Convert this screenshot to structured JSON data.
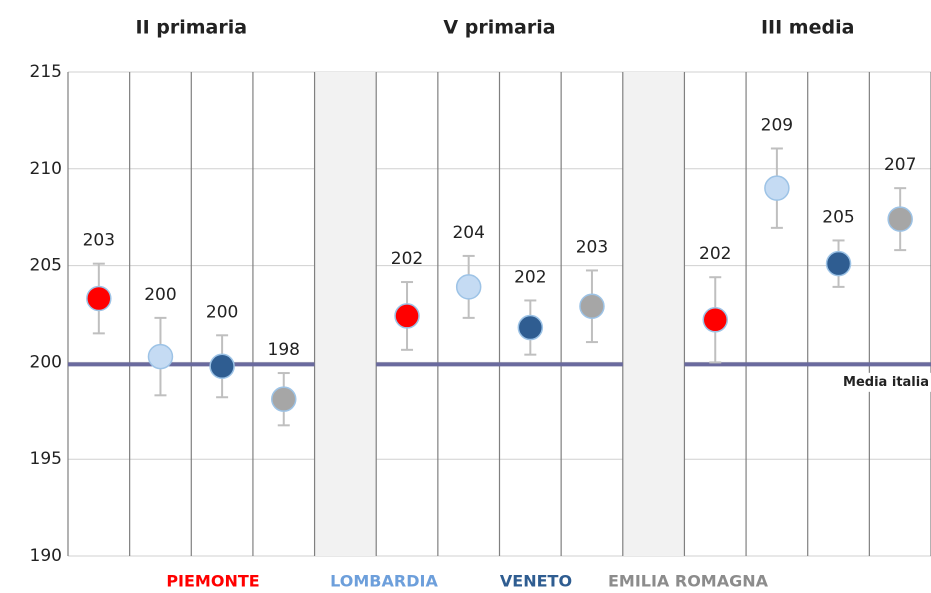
{
  "chart_data": {
    "type": "errorbar",
    "groups": [
      "II primaria",
      "V primaria",
      "III media"
    ],
    "series": [
      {
        "name": "PIEMONTE",
        "color": "#ff0000",
        "label_color": "#ff0000",
        "values": [
          203.3,
          202.4,
          202.2
        ],
        "value_labels": [
          "203",
          "202",
          "202"
        ],
        "errors": [
          1.8,
          1.75,
          2.2
        ]
      },
      {
        "name": "LOMBARDIA",
        "color": "#c5dbf3",
        "label_color": "#6d9fdb",
        "values": [
          200.3,
          203.9,
          209.0
        ],
        "value_labels": [
          "200",
          "204",
          "209"
        ],
        "errors": [
          2.0,
          1.6,
          2.05
        ]
      },
      {
        "name": "VENETO",
        "color": "#2f5d91",
        "label_color": "#2f5d91",
        "values": [
          199.8,
          201.8,
          205.1
        ],
        "value_labels": [
          "200",
          "202",
          "205"
        ],
        "errors": [
          1.6,
          1.4,
          1.2
        ]
      },
      {
        "name": "EMILIA ROMAGNA",
        "color": "#a6a6a6",
        "label_color": "#8c8c8c",
        "values": [
          198.1,
          202.9,
          207.4
        ],
        "value_labels": [
          "198",
          "203",
          "207"
        ],
        "errors": [
          1.35,
          1.85,
          1.6
        ]
      }
    ],
    "reference": {
      "value": 199.9,
      "label": "Media italia",
      "color": "#6a6a9e"
    },
    "ylim": [
      190,
      215
    ],
    "yticks": [
      190,
      195,
      200,
      205,
      210,
      215
    ],
    "grid": true
  }
}
